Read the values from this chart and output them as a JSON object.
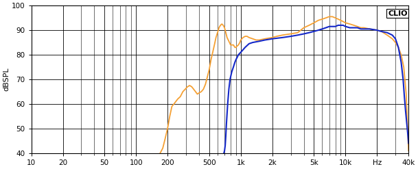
{
  "title": "CLIO",
  "ylabel": "dBSPL",
  "xlim": [
    10,
    40000
  ],
  "ylim": [
    40,
    100
  ],
  "yticks": [
    40,
    50,
    60,
    70,
    80,
    90,
    100
  ],
  "xticks": [
    10,
    20,
    50,
    100,
    200,
    500,
    1000,
    2000,
    5000,
    10000,
    20000,
    40000
  ],
  "xticklabels": [
    "10",
    "20",
    "50",
    "100",
    "200",
    "500",
    "1k",
    "2k",
    "5k",
    "10k",
    "Hz",
    "40k"
  ],
  "bg_color": "#ffffff",
  "grid_color": "#000000",
  "orange_color": "#f5a033",
  "blue_color": "#1428c8",
  "orange_data": [
    [
      170,
      40
    ],
    [
      180,
      42
    ],
    [
      190,
      46
    ],
    [
      200,
      50
    ],
    [
      210,
      55
    ],
    [
      220,
      59
    ],
    [
      230,
      60
    ],
    [
      240,
      61
    ],
    [
      250,
      62
    ],
    [
      265,
      63
    ],
    [
      280,
      65
    ],
    [
      295,
      66
    ],
    [
      310,
      67
    ],
    [
      325,
      67.5
    ],
    [
      340,
      67
    ],
    [
      355,
      66
    ],
    [
      370,
      65
    ],
    [
      385,
      64
    ],
    [
      400,
      64.5
    ],
    [
      420,
      65
    ],
    [
      440,
      66
    ],
    [
      460,
      68
    ],
    [
      480,
      71
    ],
    [
      500,
      74
    ],
    [
      520,
      78
    ],
    [
      540,
      81
    ],
    [
      560,
      84
    ],
    [
      580,
      87
    ],
    [
      600,
      89
    ],
    [
      620,
      91
    ],
    [
      640,
      92
    ],
    [
      660,
      92.5
    ],
    [
      680,
      92
    ],
    [
      700,
      91
    ],
    [
      720,
      89
    ],
    [
      740,
      87
    ],
    [
      760,
      86
    ],
    [
      780,
      85
    ],
    [
      800,
      84
    ],
    [
      820,
      84
    ],
    [
      850,
      84
    ],
    [
      880,
      83
    ],
    [
      900,
      83
    ],
    [
      920,
      83.5
    ],
    [
      950,
      84
    ],
    [
      980,
      85
    ],
    [
      1000,
      86
    ],
    [
      1050,
      87
    ],
    [
      1100,
      87.5
    ],
    [
      1150,
      87.5
    ],
    [
      1200,
      87
    ],
    [
      1300,
      86.5
    ],
    [
      1400,
      86
    ],
    [
      1500,
      86
    ],
    [
      1700,
      86.5
    ],
    [
      2000,
      87
    ],
    [
      2200,
      87.5
    ],
    [
      2500,
      88
    ],
    [
      3000,
      88.5
    ],
    [
      3500,
      89
    ],
    [
      4000,
      91
    ],
    [
      4500,
      92
    ],
    [
      5000,
      93
    ],
    [
      5500,
      94
    ],
    [
      6000,
      94.5
    ],
    [
      6500,
      95
    ],
    [
      7000,
      95.5
    ],
    [
      7500,
      95.5
    ],
    [
      8000,
      95
    ],
    [
      8500,
      94.5
    ],
    [
      9000,
      94
    ],
    [
      9500,
      93.5
    ],
    [
      10000,
      93
    ],
    [
      11000,
      92.5
    ],
    [
      12000,
      92
    ],
    [
      13000,
      91.5
    ],
    [
      14000,
      91
    ],
    [
      15000,
      91
    ],
    [
      17000,
      90.5
    ],
    [
      20000,
      90
    ],
    [
      22000,
      89.5
    ],
    [
      25000,
      88
    ],
    [
      28000,
      86.5
    ],
    [
      30000,
      85
    ],
    [
      32000,
      83
    ],
    [
      34000,
      80
    ],
    [
      36000,
      75
    ],
    [
      38000,
      64
    ],
    [
      39000,
      52
    ],
    [
      40000,
      41
    ]
  ],
  "blue_data": [
    [
      690,
      40
    ],
    [
      700,
      41
    ],
    [
      710,
      43
    ],
    [
      720,
      47
    ],
    [
      730,
      52
    ],
    [
      740,
      56
    ],
    [
      750,
      60
    ],
    [
      760,
      63
    ],
    [
      770,
      66
    ],
    [
      780,
      68
    ],
    [
      790,
      70
    ],
    [
      800,
      71
    ],
    [
      820,
      73
    ],
    [
      850,
      75
    ],
    [
      880,
      77
    ],
    [
      900,
      78
    ],
    [
      950,
      80
    ],
    [
      1000,
      81
    ],
    [
      1100,
      83
    ],
    [
      1200,
      84.5
    ],
    [
      1300,
      85
    ],
    [
      1500,
      85.5
    ],
    [
      1700,
      86
    ],
    [
      2000,
      86.5
    ],
    [
      2500,
      87
    ],
    [
      3000,
      87.5
    ],
    [
      3500,
      88
    ],
    [
      4000,
      88.5
    ],
    [
      4500,
      89
    ],
    [
      5000,
      89.5
    ],
    [
      5500,
      90
    ],
    [
      6000,
      90.5
    ],
    [
      6500,
      91
    ],
    [
      7000,
      91.5
    ],
    [
      7500,
      91.5
    ],
    [
      8000,
      91.5
    ],
    [
      8500,
      92
    ],
    [
      9000,
      92
    ],
    [
      9500,
      92
    ],
    [
      10000,
      91.5
    ],
    [
      11000,
      91
    ],
    [
      12000,
      91
    ],
    [
      13000,
      91
    ],
    [
      14000,
      90.5
    ],
    [
      15000,
      90.5
    ],
    [
      17000,
      90.5
    ],
    [
      20000,
      90
    ],
    [
      22000,
      89.5
    ],
    [
      25000,
      89
    ],
    [
      28000,
      88
    ],
    [
      30000,
      86.5
    ],
    [
      32000,
      83
    ],
    [
      34000,
      77
    ],
    [
      35500,
      70
    ],
    [
      36500,
      63
    ],
    [
      37500,
      57
    ],
    [
      38500,
      52
    ],
    [
      39500,
      47
    ],
    [
      40000,
      44
    ]
  ]
}
